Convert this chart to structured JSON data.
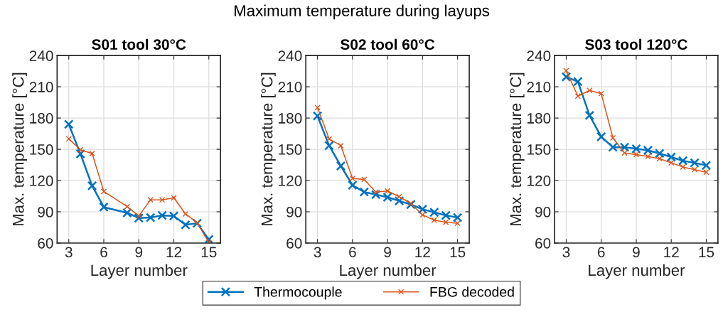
{
  "chart_data": [
    {
      "type": "line",
      "title": "S01 tool 30°C",
      "xlabel": "Layer number",
      "ylabel": "Max. temperature [°C]",
      "annotations": [
        "Maximum temperature during layups"
      ],
      "legend": "bottom",
      "grid": true,
      "marker": "cross",
      "line_style": "solid",
      "x": [
        3,
        4,
        5,
        6,
        8,
        9,
        10,
        11,
        12,
        13,
        14,
        15
      ],
      "xlim": [
        2,
        16
      ],
      "xticks": [
        3,
        6,
        9,
        12,
        15
      ],
      "ylim": [
        60,
        240
      ],
      "yticks": [
        60,
        90,
        120,
        150,
        180,
        210,
        240
      ],
      "series": [
        {
          "name": "Thermocouple",
          "color": "#0072bd",
          "values": [
            174,
            145.5,
            115,
            94.5,
            89,
            84,
            84.5,
            86.5,
            86,
            77.5,
            79,
            63.5
          ]
        },
        {
          "name": "FBG decoded",
          "color": "#d95319",
          "values": [
            160,
            149.5,
            146,
            109.5,
            95,
            86,
            101.5,
            101.5,
            103.5,
            88,
            79.5,
            60.5
          ]
        }
      ]
    },
    {
      "type": "line",
      "title": "S02 tool 60°C",
      "xlabel": "Layer number",
      "ylabel": "Max. temperature [°C]",
      "grid": true,
      "marker": "cross",
      "line_style": "solid",
      "x": [
        3,
        4,
        5,
        6,
        7,
        8,
        9,
        10,
        11,
        12,
        13,
        14,
        15
      ],
      "xlim": [
        2,
        16
      ],
      "xticks": [
        3,
        6,
        9,
        12,
        15
      ],
      "ylim": [
        60,
        240
      ],
      "yticks": [
        60,
        90,
        120,
        150,
        180,
        210,
        240
      ],
      "series": [
        {
          "name": "Thermocouple",
          "color": "#0072bd",
          "values": [
            182,
            153.5,
            134,
            115.5,
            109,
            106.5,
            104,
            100.5,
            97,
            92.5,
            89.5,
            86.5,
            84.5
          ]
        },
        {
          "name": "FBG decoded",
          "color": "#d95319",
          "values": [
            190,
            160,
            153.5,
            122,
            121,
            109,
            110,
            104.5,
            98,
            87,
            82,
            80,
            79
          ]
        }
      ]
    },
    {
      "type": "line",
      "title": "S03 tool 120°C",
      "xlabel": "Layer number",
      "ylabel": "Max. temperature [°C]",
      "grid": true,
      "marker": "cross",
      "line_style": "solid",
      "x": [
        3,
        4,
        5,
        6,
        7,
        8,
        9,
        10,
        11,
        12,
        13,
        14,
        15
      ],
      "xlim": [
        2,
        16
      ],
      "xticks": [
        3,
        6,
        9,
        12,
        15
      ],
      "ylim": [
        60,
        240
      ],
      "yticks": [
        60,
        90,
        120,
        150,
        180,
        210,
        240
      ],
      "series": [
        {
          "name": "Thermocouple",
          "color": "#0072bd",
          "values": [
            219.5,
            215,
            182.5,
            162,
            152,
            152,
            150.5,
            149,
            146,
            142.5,
            139,
            137,
            134.5
          ]
        },
        {
          "name": "FBG decoded",
          "color": "#d95319",
          "values": [
            225.5,
            201,
            206.5,
            203.5,
            161,
            146.5,
            145,
            143,
            141,
            137,
            133,
            130.5,
            128
          ]
        }
      ]
    }
  ]
}
